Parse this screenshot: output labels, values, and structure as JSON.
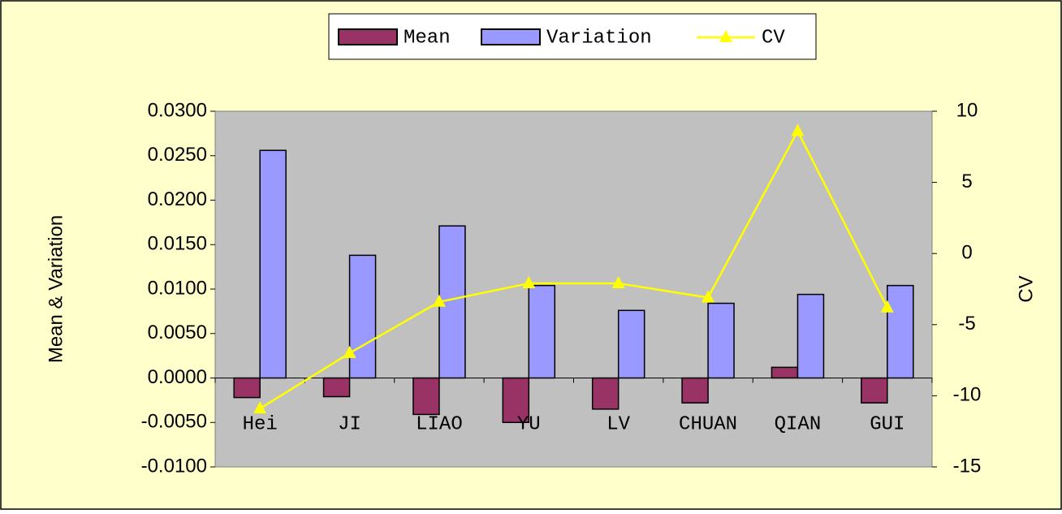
{
  "chart_data": {
    "type": "bar",
    "categories": [
      "Hei",
      "JI",
      "LIAO",
      "YU",
      "LV",
      "CHUAN",
      "QIAN",
      "GUI"
    ],
    "series": [
      {
        "name": "Mean",
        "type": "bar",
        "color": "#993366",
        "values": [
          -0.0022,
          -0.0021,
          -0.0041,
          -0.005,
          -0.0035,
          -0.0028,
          0.0012,
          -0.0028
        ]
      },
      {
        "name": "Variation",
        "type": "bar",
        "color": "#9999ff",
        "values": [
          0.0256,
          0.0138,
          0.0171,
          0.0104,
          0.0076,
          0.0084,
          0.0094,
          0.0104
        ]
      },
      {
        "name": "CV",
        "type": "line",
        "axis": "y2",
        "color": "#ffff00",
        "values": [
          -10.9,
          -7.0,
          -3.4,
          -2.1,
          -2.1,
          -3.1,
          8.6,
          -3.8
        ]
      }
    ],
    "ylabel": "Mean & Variation",
    "y2label": "CV",
    "ylim": [
      -0.01,
      0.03
    ],
    "yticks": [
      {
        "value": -0.01,
        "label": "-0.0100"
      },
      {
        "value": -0.005,
        "label": "-0.0050"
      },
      {
        "value": 0,
        "label": "0.0000"
      },
      {
        "value": 0.005,
        "label": "0.0050"
      },
      {
        "value": 0.01,
        "label": "0.0100"
      },
      {
        "value": 0.015,
        "label": "0.0150"
      },
      {
        "value": 0.02,
        "label": "0.0200"
      },
      {
        "value": 0.025,
        "label": "0.0250"
      },
      {
        "value": 0.03,
        "label": "0.0300"
      }
    ],
    "y2lim": [
      -15,
      10
    ],
    "y2ticks": [
      -15,
      -10,
      -5,
      0,
      5,
      10
    ],
    "legend": "top",
    "grid": false
  }
}
